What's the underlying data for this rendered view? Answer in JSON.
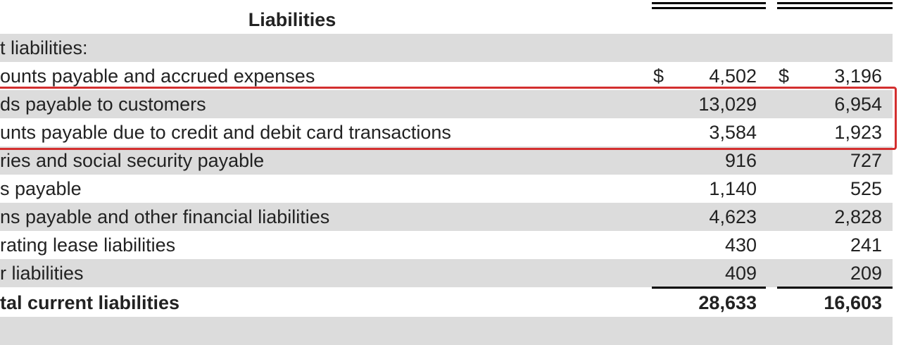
{
  "header": {
    "title": "Liabilities"
  },
  "section_label": "t liabilities:",
  "rows": [
    {
      "label": "ounts payable and accrued expenses",
      "col1_currency": "$",
      "col1": "4,502",
      "col2_currency": "$",
      "col2": "3,196"
    },
    {
      "label": "ds payable to customers",
      "col1": "13,029",
      "col2": "6,954",
      "highlighted": true
    },
    {
      "label": "unts payable due to credit and debit card transactions",
      "col1": "3,584",
      "col2": "1,923",
      "highlighted": true
    },
    {
      "label": "ries and social security payable",
      "col1": "916",
      "col2": "727"
    },
    {
      "label": "s payable",
      "col1": "1,140",
      "col2": "525"
    },
    {
      "label": "ns payable and other financial liabilities",
      "col1": "4,623",
      "col2": "2,828"
    },
    {
      "label": "rating lease liabilities",
      "col1": "430",
      "col2": "241"
    },
    {
      "label": "r liabilities",
      "col1": "409",
      "col2": "209"
    }
  ],
  "total": {
    "label": "tal current liabilities",
    "col1": "28,633",
    "col2": "16,603"
  },
  "highlight_color": "#d32f2f"
}
